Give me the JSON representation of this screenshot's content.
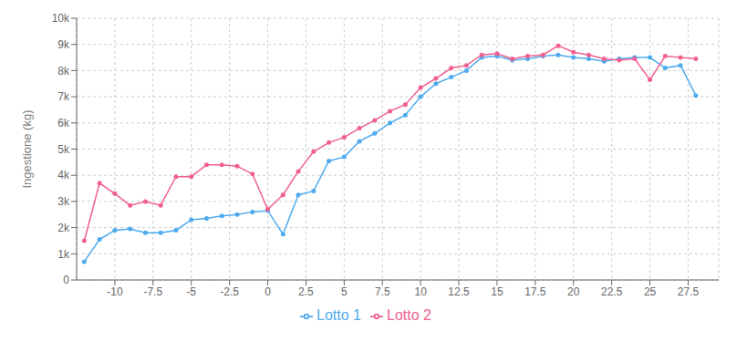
{
  "chart_data": {
    "type": "line",
    "ylabel": "Ingestione (kg)",
    "x": [
      -12,
      -11,
      -10,
      -9,
      -8,
      -7,
      -6,
      -5,
      -4,
      -3,
      -2,
      -1,
      0,
      1,
      2,
      3,
      4,
      5,
      6,
      7,
      8,
      9,
      10,
      11,
      12,
      13,
      14,
      15,
      16,
      17,
      18,
      19,
      20,
      21,
      22,
      23,
      24,
      25,
      26,
      27,
      28
    ],
    "series": [
      {
        "name": "Lotto 1",
        "color": "#4dabee",
        "marker": "o",
        "values": [
          700,
          1550,
          1900,
          1950,
          1800,
          1800,
          1900,
          2300,
          2350,
          2450,
          2500,
          2600,
          2650,
          1750,
          3250,
          3400,
          4550,
          4700,
          5300,
          5600,
          6000,
          6300,
          7000,
          7500,
          7750,
          8000,
          8500,
          8550,
          8400,
          8450,
          8550,
          8600,
          8500,
          8450,
          8350,
          8450,
          8500,
          8500,
          8100,
          8200,
          7050
        ]
      },
      {
        "name": "Lotto 2",
        "color": "#f06090",
        "marker": "o",
        "values": [
          1500,
          3700,
          3300,
          2850,
          3000,
          2850,
          3950,
          3950,
          4400,
          4400,
          4350,
          4050,
          2700,
          3250,
          4150,
          4900,
          5250,
          5450,
          5800,
          6100,
          6450,
          6700,
          7350,
          7700,
          8100,
          8200,
          8600,
          8650,
          8450,
          8550,
          8600,
          8950,
          8700,
          8600,
          8450,
          8400,
          8450,
          7650,
          8550,
          8500,
          8450
        ]
      }
    ],
    "xlim": [
      -12.5,
      29.5
    ],
    "xticks": [
      -10,
      -7.5,
      -5,
      -2.5,
      0,
      2.5,
      5,
      7.5,
      10,
      12.5,
      15,
      17.5,
      20,
      22.5,
      25,
      27.5
    ],
    "ylim": [
      0,
      10000
    ],
    "yticks": [
      0,
      {
        "value": 1000,
        "label": "1k"
      },
      {
        "value": 2000,
        "label": "2k"
      },
      {
        "value": 3000,
        "label": "3k"
      },
      {
        "value": 4000,
        "label": "4k"
      },
      {
        "value": 5000,
        "label": "5k"
      },
      {
        "value": 6000,
        "label": "6k"
      },
      {
        "value": 7000,
        "label": "7k"
      },
      {
        "value": 8000,
        "label": "8k"
      },
      {
        "value": 9000,
        "label": "9k"
      },
      {
        "value": 10000,
        "label": "10k"
      }
    ],
    "grid": true,
    "legend": "bottom"
  }
}
